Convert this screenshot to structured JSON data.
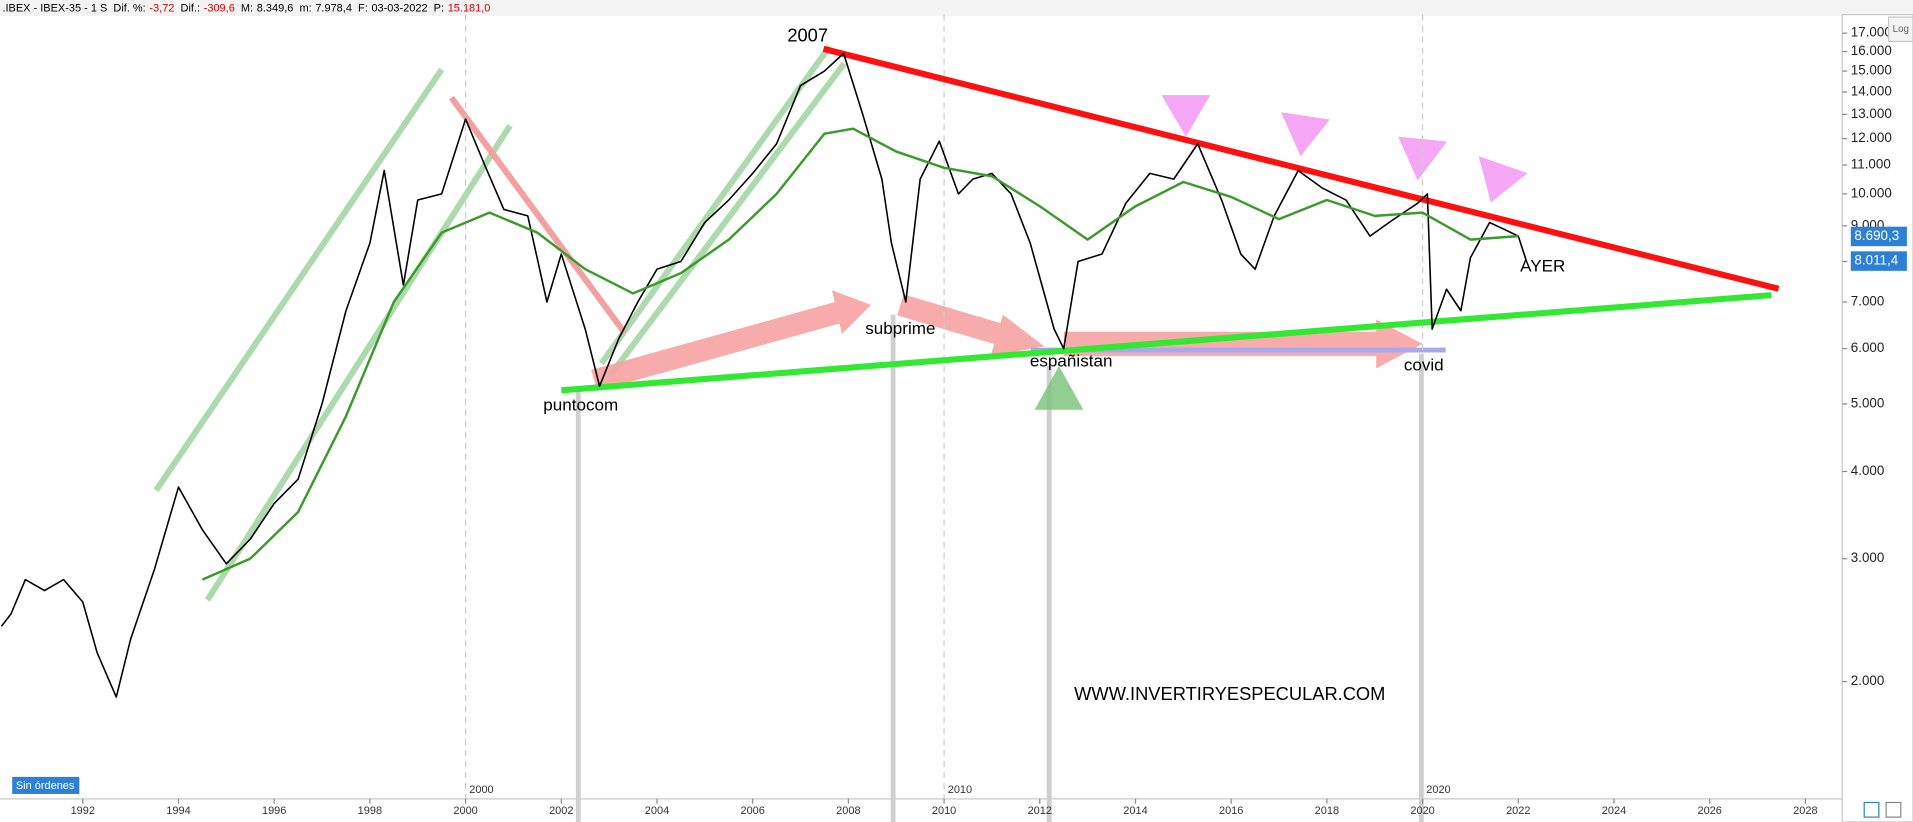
{
  "header": {
    "title": ".IBEX - IBEX-35 -  1 S",
    "items": [
      {
        "label": "Dif. %:",
        "value": "-3,72",
        "color": "#d00000"
      },
      {
        "label": "Dif.:",
        "value": "-309,6",
        "color": "#d00000"
      },
      {
        "label": "M:",
        "value": "8.349,6",
        "color": "#000000"
      },
      {
        "label": "m:",
        "value": "7.978,4",
        "color": "#000000"
      },
      {
        "label": "F:",
        "value": "03-03-2022",
        "color": "#000000"
      },
      {
        "label": "P:",
        "value": "15.181,0",
        "color": "#d00000"
      }
    ]
  },
  "chart_data": {
    "type": "line",
    "log_scale": true,
    "xlim": [
      1990.27,
      2028.77
    ],
    "xticks": [
      1992,
      1994,
      1996,
      1998,
      2000,
      2002,
      2004,
      2006,
      2008,
      2010,
      2012,
      2014,
      2016,
      2018,
      2020,
      2022,
      2024,
      2026,
      2028
    ],
    "decade_lines": [
      2000,
      2010,
      2020
    ],
    "ylim": [
      1358,
      18070
    ],
    "yticks": [
      {
        "value": 2000,
        "label": "2.000"
      },
      {
        "value": 3000,
        "label": "3.000"
      },
      {
        "value": 4000,
        "label": "4.000"
      },
      {
        "value": 5000,
        "label": "5.000"
      },
      {
        "value": 6000,
        "label": "6.000"
      },
      {
        "value": 7000,
        "label": "7.000"
      },
      {
        "value": 8000,
        "label": "8.000"
      },
      {
        "value": 9000,
        "label": "9.000"
      },
      {
        "value": 10000,
        "label": "10.000"
      },
      {
        "value": 11000,
        "label": "11.000"
      },
      {
        "value": 12000,
        "label": "12.000"
      },
      {
        "value": 13000,
        "label": "13.000"
      },
      {
        "value": 14000,
        "label": "14.000"
      },
      {
        "value": 15000,
        "label": "15.000"
      },
      {
        "value": 16000,
        "label": "16.000"
      },
      {
        "value": 17000,
        "label": "17.000"
      }
    ],
    "series": [
      {
        "color": "#000000",
        "x": [
          1990.3,
          1990.5,
          1990.8,
          1991.2,
          1991.6,
          1992.0,
          1992.3,
          1992.7,
          1993.0,
          1993.5,
          1994.0,
          1994.5,
          1995.0,
          1995.5,
          1996.0,
          1996.5,
          1997.0,
          1997.5,
          1998.0,
          1998.3,
          1998.7,
          1999.0,
          1999.5,
          2000.0,
          2000.4,
          2000.8,
          2001.3,
          2001.7,
          2002.0,
          2002.5,
          2002.8,
          2003.2,
          2003.6,
          2004.0,
          2004.5,
          2005.0,
          2005.5,
          2006.0,
          2006.5,
          2007.0,
          2007.5,
          2007.9,
          2008.3,
          2008.7,
          2008.9,
          2009.2,
          2009.5,
          2009.9,
          2010.3,
          2010.6,
          2011.0,
          2011.4,
          2011.8,
          2012.3,
          2012.5,
          2012.8,
          2013.3,
          2013.8,
          2014.3,
          2014.8,
          2015.3,
          2015.8,
          2016.2,
          2016.5,
          2016.9,
          2017.4,
          2017.9,
          2018.4,
          2018.9,
          2019.4,
          2019.9,
          2020.1,
          2020.2,
          2020.5,
          2020.8,
          2021.0,
          2021.4,
          2021.7,
          2022.0,
          2022.17
        ],
        "values": [
          2400,
          2500,
          2800,
          2700,
          2800,
          2600,
          2200,
          1900,
          2300,
          2900,
          3800,
          3300,
          2950,
          3200,
          3600,
          3900,
          5000,
          6800,
          8500,
          10800,
          7400,
          9800,
          10000,
          12800,
          11000,
          9500,
          9300,
          7000,
          8200,
          6400,
          5300,
          6200,
          7000,
          7800,
          8000,
          9100,
          9800,
          10700,
          11800,
          14300,
          15000,
          15900,
          13000,
          10500,
          8500,
          7000,
          10500,
          11900,
          10000,
          10500,
          10700,
          10000,
          8500,
          6400,
          6000,
          8000,
          8200,
          9700,
          10700,
          10500,
          11800,
          9800,
          8200,
          7800,
          9300,
          10800,
          10200,
          9800,
          8700,
          9200,
          9700,
          10000,
          6400,
          7300,
          6800,
          8100,
          9100,
          8900,
          8700,
          8011
        ]
      },
      {
        "color": "#3a9a2a",
        "x": [
          1994.5,
          1995.5,
          1996.5,
          1997.5,
          1998.5,
          1999.5,
          2000.5,
          2001.5,
          2002.5,
          2003.5,
          2004.5,
          2005.5,
          2006.5,
          2007.5,
          2008.1,
          2009.0,
          2010.0,
          2011.0,
          2012.0,
          2013.0,
          2014.0,
          2015.0,
          2016.0,
          2017.0,
          2018.0,
          2019.0,
          2020.0,
          2021.0,
          2022.0
        ],
        "values": [
          2800,
          3000,
          3500,
          4800,
          7000,
          8800,
          9400,
          8800,
          7800,
          7200,
          7700,
          8600,
          10000,
          12200,
          12400,
          11500,
          10900,
          10600,
          9600,
          8600,
          9600,
          10400,
          9900,
          9200,
          9800,
          9300,
          9400,
          8600,
          8700
        ]
      }
    ],
    "trendlines": [
      {
        "color": "#ff1010",
        "x": [
          2007.48,
          2027.44
        ],
        "values": [
          16140,
          7310
        ]
      },
      {
        "color": "#33e833",
        "x": [
          2002.0,
          2027.29
        ],
        "values": [
          5230,
          7160
        ]
      }
    ],
    "price_tags": [
      {
        "value": 8690.3,
        "label": "8.690,3",
        "color": "#2e7fd6"
      },
      {
        "value": 8011.4,
        "label": "8.011,4",
        "color": "#2e7fd6"
      }
    ],
    "annotations": {
      "peak": "2007",
      "subprime": "subprime",
      "dotcom": "puntocom",
      "spain": "españistan",
      "covid": "covid",
      "yesterday": "AYER",
      "website": "WWW.INVERTIRYESPECULAR.COM"
    },
    "scale_mode": "Log",
    "status": "Sin órdenes"
  }
}
